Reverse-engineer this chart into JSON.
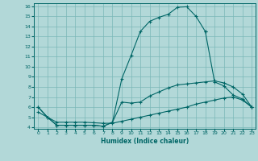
{
  "background_color": "#b2d8d8",
  "grid_color": "#7ab8b8",
  "line_color": "#006666",
  "xlabel": "Humidex (Indice chaleur)",
  "xlim_min": -0.5,
  "xlim_max": 23.4,
  "ylim_min": 3.85,
  "ylim_max": 16.3,
  "xticks": [
    0,
    1,
    2,
    3,
    4,
    5,
    6,
    7,
    8,
    9,
    10,
    11,
    12,
    13,
    14,
    15,
    16,
    17,
    18,
    19,
    20,
    21,
    22,
    23
  ],
  "yticks": [
    4,
    5,
    6,
    7,
    8,
    9,
    10,
    11,
    12,
    13,
    14,
    15,
    16
  ],
  "line_upper_x": [
    0,
    1,
    2,
    3,
    4,
    5,
    6,
    7,
    8,
    9,
    10,
    11,
    12,
    13,
    14,
    15,
    16,
    17,
    18
  ],
  "line_upper_y": [
    6.0,
    5.0,
    4.2,
    4.2,
    4.2,
    4.2,
    4.2,
    4.1,
    4.5,
    8.8,
    11.1,
    13.5,
    14.5,
    14.9,
    15.2,
    15.9,
    15.95,
    15.0,
    13.5
  ],
  "line_close_x": [
    18,
    19,
    20,
    21,
    22,
    23
  ],
  "line_close_y": [
    13.5,
    8.5,
    8.1,
    7.2,
    6.8,
    6.0
  ],
  "line_mid_x": [
    0,
    1,
    2,
    3,
    4,
    5,
    6,
    7,
    8,
    9,
    10,
    11,
    12,
    13,
    14,
    15,
    16,
    17,
    18,
    19,
    20,
    21,
    22,
    23
  ],
  "line_mid_y": [
    6.0,
    5.0,
    4.2,
    4.2,
    4.2,
    4.2,
    4.2,
    4.1,
    4.5,
    6.5,
    6.4,
    6.5,
    7.1,
    7.5,
    7.9,
    8.2,
    8.3,
    8.4,
    8.5,
    8.6,
    8.4,
    8.0,
    7.3,
    6.0
  ],
  "line_bot_x": [
    0,
    1,
    2,
    3,
    4,
    5,
    6,
    7,
    8,
    9,
    10,
    11,
    12,
    13,
    14,
    15,
    16,
    17,
    18,
    19,
    20,
    21,
    22,
    23
  ],
  "line_bot_y": [
    5.5,
    5.0,
    4.5,
    4.5,
    4.5,
    4.5,
    4.45,
    4.4,
    4.4,
    4.6,
    4.8,
    5.0,
    5.2,
    5.4,
    5.6,
    5.8,
    6.0,
    6.3,
    6.5,
    6.7,
    6.9,
    7.0,
    6.7,
    6.0
  ]
}
